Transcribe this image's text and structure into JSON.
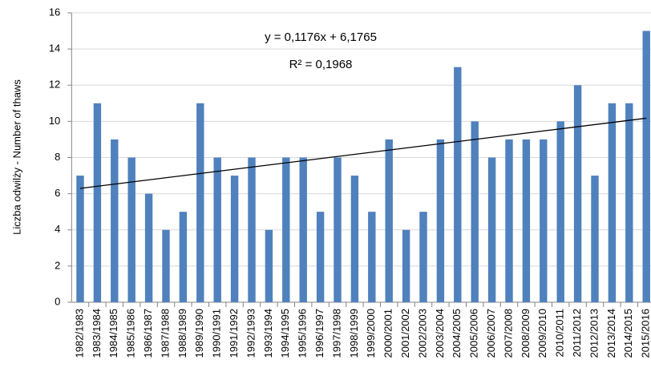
{
  "chart_data": {
    "type": "bar",
    "y_label": "Liczba odwilży - Number of thaws",
    "categories": [
      "1982/1983",
      "1983/1984",
      "1984/1985",
      "1985/1986",
      "1986/1987",
      "1987/1988",
      "1988/1989",
      "1989/1990",
      "1990/1991",
      "1991/1992",
      "1992/1993",
      "1993/1994",
      "1994/1995",
      "1995/1996",
      "1996/1997",
      "1997/1998",
      "1998/1999",
      "1999/2000",
      "2000/2001",
      "2001/2002",
      "2002/2003",
      "2003/2004",
      "2004/2005",
      "2005/2006",
      "2006/2007",
      "2007/2008",
      "2008/2009",
      "2009/2010",
      "2010/2011",
      "2011/2012",
      "2012/2013",
      "2013/2014",
      "2014/2015",
      "2015/2016"
    ],
    "values": [
      7,
      11,
      9,
      8,
      6,
      4,
      5,
      11,
      8,
      7,
      8,
      4,
      8,
      8,
      5,
      8,
      7,
      5,
      9,
      4,
      5,
      9,
      13,
      10,
      8,
      9,
      9,
      9,
      10,
      12,
      7,
      11,
      11,
      15
    ],
    "color": "#4f81bd",
    "trendline": {
      "slope": 0.1176,
      "intercept": 6.1765,
      "equation": "y = 0,1176x + 6,1765",
      "r_squared": "R² = 0,1968"
    },
    "ylim": [
      0,
      16
    ],
    "yticks": [
      0,
      2,
      4,
      6,
      8,
      10,
      12,
      14,
      16
    ],
    "grid": true
  }
}
